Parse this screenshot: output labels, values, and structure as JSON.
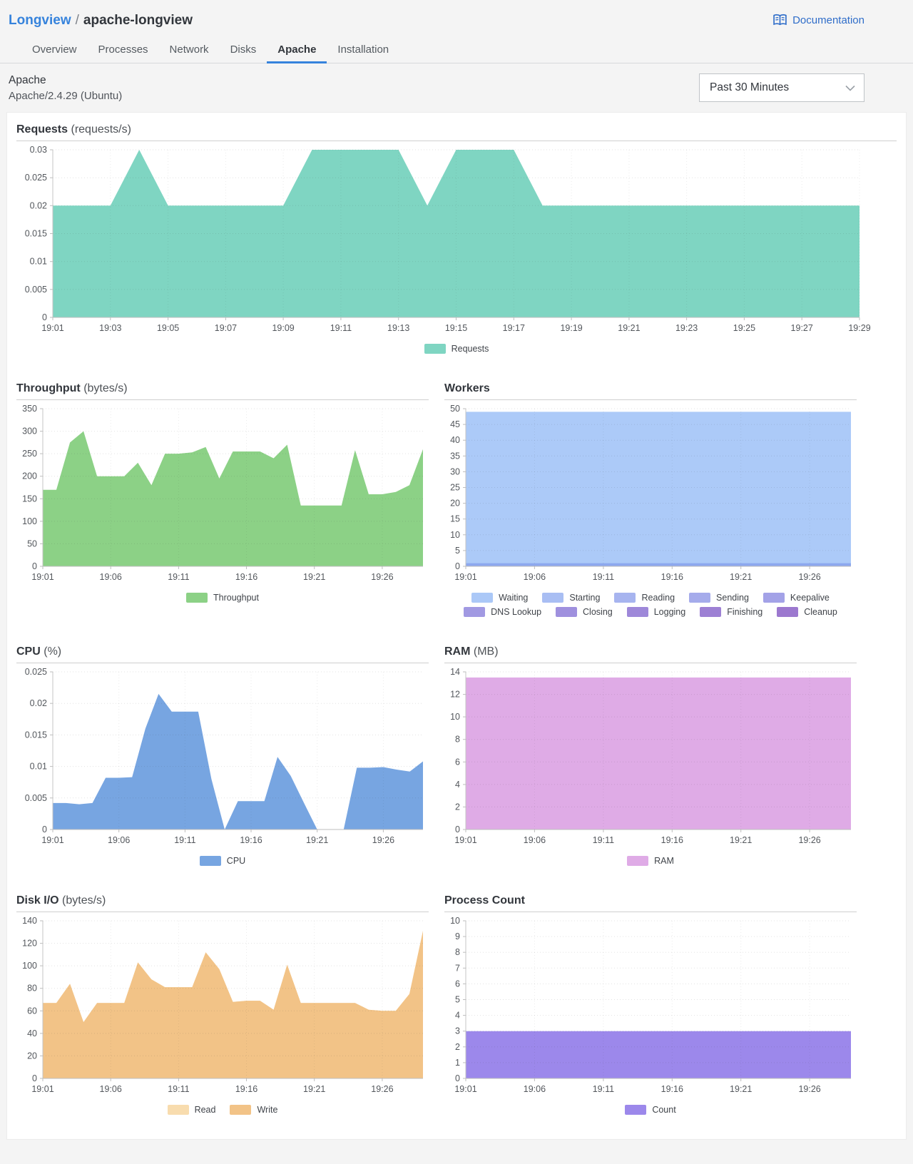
{
  "breadcrumb": {
    "parent": "Longview",
    "separator": "/",
    "current": "apache-longview"
  },
  "documentation_label": "Documentation",
  "tabs": [
    {
      "label": "Overview",
      "active": false
    },
    {
      "label": "Processes",
      "active": false
    },
    {
      "label": "Network",
      "active": false
    },
    {
      "label": "Disks",
      "active": false
    },
    {
      "label": "Apache",
      "active": true
    },
    {
      "label": "Installation",
      "active": false
    }
  ],
  "section": {
    "title": "Apache",
    "subtitle": "Apache/2.4.29 (Ubuntu)",
    "time_range": "Past 30 Minutes"
  },
  "theme": {
    "accent_blue": "#3683dc",
    "link_blue": "#2f6dc9",
    "page_bg": "#f4f4f4",
    "card_bg": "#ffffff"
  },
  "chart_data": [
    {
      "id": "requests",
      "type": "area",
      "title": "Requests",
      "unit": "(requests/s)",
      "x_minutes": [
        1,
        2,
        3,
        4,
        5,
        6,
        7,
        8,
        9,
        10,
        11,
        12,
        13,
        14,
        15,
        16,
        17,
        18,
        19,
        20,
        21,
        22,
        23,
        24,
        25,
        26,
        27,
        28,
        29
      ],
      "x_range": [
        1,
        29
      ],
      "xtick_minutes": [
        1,
        3,
        5,
        7,
        9,
        11,
        13,
        15,
        17,
        19,
        21,
        23,
        25,
        27,
        29
      ],
      "xtick_labels": [
        "19:01",
        "19:03",
        "19:05",
        "19:07",
        "19:09",
        "19:11",
        "19:13",
        "19:15",
        "19:17",
        "19:19",
        "19:21",
        "19:23",
        "19:25",
        "19:27",
        "19:29"
      ],
      "ylim": [
        0,
        0.03
      ],
      "yticks": [
        0,
        0.005,
        0.01,
        0.015,
        0.02,
        0.025,
        0.03
      ],
      "ytick_labels": [
        "0",
        "0.005",
        "0.01",
        "0.015",
        "0.02",
        "0.025",
        "0.03"
      ],
      "series": [
        {
          "name": "Requests",
          "color": "#7fd5c2",
          "values": [
            0.02,
            0.02,
            0.02,
            0.03,
            0.02,
            0.02,
            0.02,
            0.02,
            0.02,
            0.03,
            0.03,
            0.03,
            0.03,
            0.02,
            0.03,
            0.03,
            0.03,
            0.02,
            0.02,
            0.02,
            0.02,
            0.02,
            0.02,
            0.02,
            0.02,
            0.02,
            0.02,
            0.02,
            0.02
          ]
        }
      ],
      "legend": [
        {
          "label": "Requests",
          "color": "#7fd5c2"
        }
      ]
    },
    {
      "id": "throughput",
      "type": "area",
      "title": "Throughput",
      "unit": "(bytes/s)",
      "x_minutes": [
        1,
        2,
        3,
        4,
        5,
        6,
        7,
        8,
        9,
        10,
        11,
        12,
        13,
        14,
        15,
        16,
        17,
        18,
        19,
        20,
        21,
        22,
        23,
        24,
        25,
        26,
        27,
        28,
        29
      ],
      "x_range": [
        1,
        29
      ],
      "xtick_minutes": [
        1,
        6,
        11,
        16,
        21,
        26
      ],
      "xtick_labels": [
        "19:01",
        "19:06",
        "19:11",
        "19:16",
        "19:21",
        "19:26"
      ],
      "ylim": [
        0,
        350
      ],
      "yticks": [
        0,
        50,
        100,
        150,
        200,
        250,
        300,
        350
      ],
      "ytick_labels": [
        "0",
        "50",
        "100",
        "150",
        "200",
        "250",
        "300",
        "350"
      ],
      "series": [
        {
          "name": "Throughput",
          "color": "#8cd186",
          "values": [
            170,
            170,
            275,
            300,
            200,
            200,
            200,
            230,
            180,
            250,
            250,
            253,
            265,
            195,
            255,
            255,
            255,
            240,
            270,
            135,
            135,
            135,
            135,
            258,
            160,
            160,
            165,
            180,
            260
          ]
        }
      ],
      "legend": [
        {
          "label": "Throughput",
          "color": "#8cd186"
        }
      ]
    },
    {
      "id": "workers",
      "type": "area",
      "title": "Workers",
      "unit": "",
      "x_minutes": [
        1,
        2,
        3,
        4,
        5,
        6,
        7,
        8,
        9,
        10,
        11,
        12,
        13,
        14,
        15,
        16,
        17,
        18,
        19,
        20,
        21,
        22,
        23,
        24,
        25,
        26,
        27,
        28,
        29
      ],
      "x_range": [
        1,
        29
      ],
      "xtick_minutes": [
        1,
        6,
        11,
        16,
        21,
        26
      ],
      "xtick_labels": [
        "19:01",
        "19:06",
        "19:11",
        "19:16",
        "19:21",
        "19:26"
      ],
      "ylim": [
        0,
        50
      ],
      "yticks": [
        0,
        5,
        10,
        15,
        20,
        25,
        30,
        35,
        40,
        45,
        50
      ],
      "ytick_labels": [
        "0",
        "5",
        "10",
        "15",
        "20",
        "25",
        "30",
        "35",
        "40",
        "45",
        "50"
      ],
      "series": [
        {
          "name": "Waiting",
          "color": "#accaf8",
          "values": [
            49,
            49,
            49,
            49,
            49,
            49,
            49,
            49,
            49,
            49,
            49,
            49,
            49,
            49,
            49,
            49,
            49,
            49,
            49,
            49,
            49,
            49,
            49,
            49,
            49,
            49,
            49,
            49,
            49
          ]
        },
        {
          "name": "Sending",
          "color": "#8da8ee",
          "values": [
            1,
            1,
            1,
            1,
            1,
            1,
            1,
            1,
            1,
            1,
            1,
            1,
            1,
            1,
            1,
            1,
            1,
            1,
            1,
            1,
            1,
            1,
            1,
            1,
            1,
            1,
            1,
            1,
            1
          ]
        }
      ],
      "legend_rows": [
        5,
        5
      ],
      "legend": [
        {
          "label": "Waiting",
          "color": "#abc8f7"
        },
        {
          "label": "Starting",
          "color": "#a9bef3"
        },
        {
          "label": "Reading",
          "color": "#a7b4ef"
        },
        {
          "label": "Sending",
          "color": "#a5abeb"
        },
        {
          "label": "Keepalive",
          "color": "#a3a2e7"
        },
        {
          "label": "DNS Lookup",
          "color": "#a199e2"
        },
        {
          "label": "Closing",
          "color": "#9f90de"
        },
        {
          "label": "Logging",
          "color": "#9e88d9"
        },
        {
          "label": "Finishing",
          "color": "#9d80d4"
        },
        {
          "label": "Cleanup",
          "color": "#9c78cf"
        }
      ]
    },
    {
      "id": "cpu",
      "type": "area",
      "title": "CPU",
      "unit": "(%)",
      "x_minutes": [
        1,
        2,
        3,
        4,
        5,
        6,
        7,
        8,
        9,
        10,
        11,
        12,
        13,
        14,
        15,
        16,
        17,
        18,
        19,
        20,
        21,
        22,
        23,
        24,
        25,
        26,
        27,
        28,
        29
      ],
      "x_range": [
        1,
        29
      ],
      "xtick_minutes": [
        1,
        6,
        11,
        16,
        21,
        26
      ],
      "xtick_labels": [
        "19:01",
        "19:06",
        "19:11",
        "19:16",
        "19:21",
        "19:26"
      ],
      "ylim": [
        0,
        0.025
      ],
      "yticks": [
        0,
        0.005,
        0.01,
        0.015,
        0.02,
        0.025
      ],
      "ytick_labels": [
        "0",
        "0.005",
        "0.01",
        "0.015",
        "0.02",
        "0.025"
      ],
      "series": [
        {
          "name": "CPU",
          "color": "#77a5e1",
          "values": [
            0.0042,
            0.0042,
            0.004,
            0.0042,
            0.0082,
            0.0082,
            0.0083,
            0.016,
            0.0215,
            0.0187,
            0.0187,
            0.0187,
            0.008,
            0,
            0.0045,
            0.0045,
            0.0045,
            0.0115,
            0.0085,
            0.0042,
            0,
            0,
            0,
            0.0098,
            0.0098,
            0.0099,
            0.0095,
            0.0092,
            0.0108
          ]
        }
      ],
      "legend": [
        {
          "label": "CPU",
          "color": "#77a5e1"
        }
      ]
    },
    {
      "id": "ram",
      "type": "area",
      "title": "RAM",
      "unit": "(MB)",
      "x_minutes": [
        1,
        2,
        3,
        4,
        5,
        6,
        7,
        8,
        9,
        10,
        11,
        12,
        13,
        14,
        15,
        16,
        17,
        18,
        19,
        20,
        21,
        22,
        23,
        24,
        25,
        26,
        27,
        28,
        29
      ],
      "x_range": [
        1,
        29
      ],
      "xtick_minutes": [
        1,
        6,
        11,
        16,
        21,
        26
      ],
      "xtick_labels": [
        "19:01",
        "19:06",
        "19:11",
        "19:16",
        "19:21",
        "19:26"
      ],
      "ylim": [
        0,
        14
      ],
      "yticks": [
        0,
        2,
        4,
        6,
        8,
        10,
        12,
        14
      ],
      "ytick_labels": [
        "0",
        "2",
        "4",
        "6",
        "8",
        "10",
        "12",
        "14"
      ],
      "series": [
        {
          "name": "RAM",
          "color": "#dfabe6",
          "values": [
            13.5,
            13.5,
            13.5,
            13.5,
            13.5,
            13.5,
            13.5,
            13.5,
            13.5,
            13.5,
            13.5,
            13.5,
            13.5,
            13.5,
            13.5,
            13.5,
            13.5,
            13.5,
            13.5,
            13.5,
            13.5,
            13.5,
            13.5,
            13.5,
            13.5,
            13.5,
            13.5,
            13.5,
            13.5
          ]
        }
      ],
      "legend": [
        {
          "label": "RAM",
          "color": "#dfabe6"
        }
      ]
    },
    {
      "id": "diskio",
      "type": "area",
      "title": "Disk I/O",
      "unit": "(bytes/s)",
      "x_minutes": [
        1,
        2,
        3,
        4,
        5,
        6,
        7,
        8,
        9,
        10,
        11,
        12,
        13,
        14,
        15,
        16,
        17,
        18,
        19,
        20,
        21,
        22,
        23,
        24,
        25,
        26,
        27,
        28,
        29
      ],
      "x_range": [
        1,
        29
      ],
      "xtick_minutes": [
        1,
        6,
        11,
        16,
        21,
        26
      ],
      "xtick_labels": [
        "19:01",
        "19:06",
        "19:11",
        "19:16",
        "19:21",
        "19:26"
      ],
      "ylim": [
        0,
        140
      ],
      "yticks": [
        0,
        20,
        40,
        60,
        80,
        100,
        120,
        140
      ],
      "ytick_labels": [
        "0",
        "20",
        "40",
        "60",
        "80",
        "100",
        "120",
        "140"
      ],
      "series": [
        {
          "name": "Read",
          "color": "#f8dcae",
          "values": [
            67,
            67,
            84,
            50,
            67,
            67,
            67,
            103,
            88,
            81,
            81,
            81,
            112,
            97,
            68,
            69,
            69,
            61,
            101,
            67,
            67,
            67,
            67,
            67,
            61,
            60,
            60,
            75,
            131
          ]
        },
        {
          "name": "Write",
          "color": "#f2c387",
          "values": [
            67,
            67,
            84,
            50,
            67,
            67,
            67,
            103,
            88,
            81,
            81,
            81,
            112,
            97,
            68,
            69,
            69,
            61,
            101,
            67,
            67,
            67,
            67,
            67,
            61,
            60,
            60,
            75,
            131
          ]
        }
      ],
      "legend": [
        {
          "label": "Read",
          "color": "#f8dcae"
        },
        {
          "label": "Write",
          "color": "#f2c387"
        }
      ]
    },
    {
      "id": "processcount",
      "type": "area",
      "title": "Process Count",
      "unit": "",
      "x_minutes": [
        1,
        2,
        3,
        4,
        5,
        6,
        7,
        8,
        9,
        10,
        11,
        12,
        13,
        14,
        15,
        16,
        17,
        18,
        19,
        20,
        21,
        22,
        23,
        24,
        25,
        26,
        27,
        28,
        29
      ],
      "x_range": [
        1,
        29
      ],
      "xtick_minutes": [
        1,
        6,
        11,
        16,
        21,
        26
      ],
      "xtick_labels": [
        "19:01",
        "19:06",
        "19:11",
        "19:16",
        "19:21",
        "19:26"
      ],
      "ylim": [
        0,
        10
      ],
      "yticks": [
        0,
        1,
        2,
        3,
        4,
        5,
        6,
        7,
        8,
        9,
        10
      ],
      "ytick_labels": [
        "0",
        "1",
        "2",
        "3",
        "4",
        "5",
        "6",
        "7",
        "8",
        "9",
        "10"
      ],
      "series": [
        {
          "name": "Count",
          "color": "#9c88eb",
          "values": [
            3,
            3,
            3,
            3,
            3,
            3,
            3,
            3,
            3,
            3,
            3,
            3,
            3,
            3,
            3,
            3,
            3,
            3,
            3,
            3,
            3,
            3,
            3,
            3,
            3,
            3,
            3,
            3,
            3
          ]
        }
      ],
      "legend": [
        {
          "label": "Count",
          "color": "#9c88eb"
        }
      ]
    }
  ]
}
